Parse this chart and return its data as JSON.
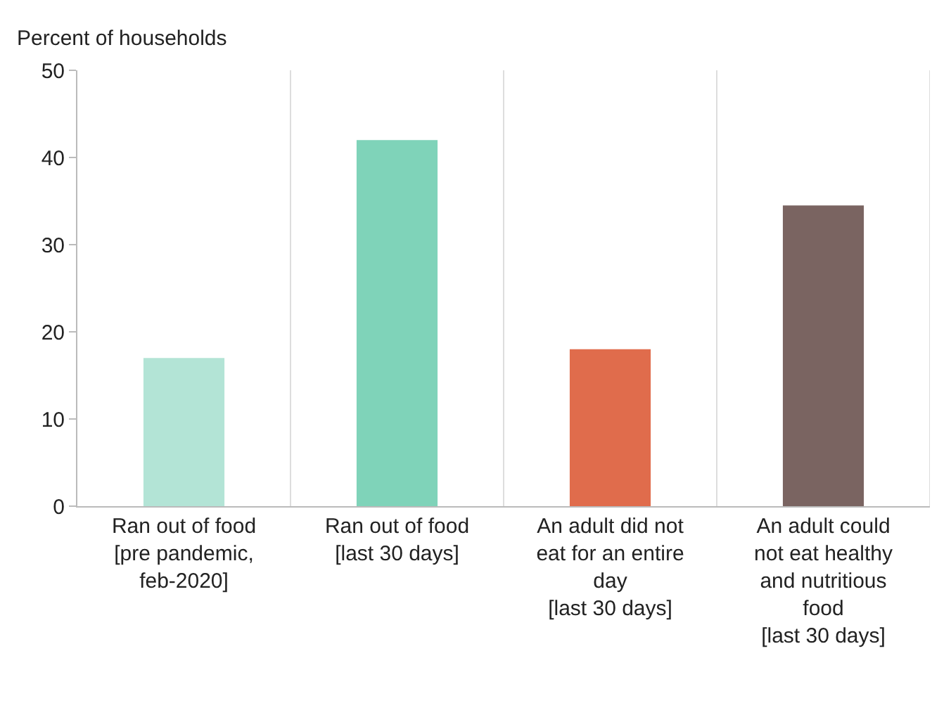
{
  "chart_data": {
    "type": "bar",
    "ylabel": "Percent of households",
    "categories": [
      "Ran out of food [pre pandemic, feb-2020]",
      "Ran out of food [last 30 days]",
      "An adult did not eat for an entire day [last 30 days]",
      "An adult could not eat healthy and nutritious food [last 30 days]"
    ],
    "values": [
      17,
      42,
      18,
      34.5
    ],
    "colors": [
      "#b3e4d6",
      "#7fd3b9",
      "#e06c4c",
      "#7a6461"
    ],
    "ylim": [
      0,
      50
    ],
    "yticks": [
      0,
      10,
      20,
      30,
      40,
      50
    ],
    "grid": "x"
  }
}
